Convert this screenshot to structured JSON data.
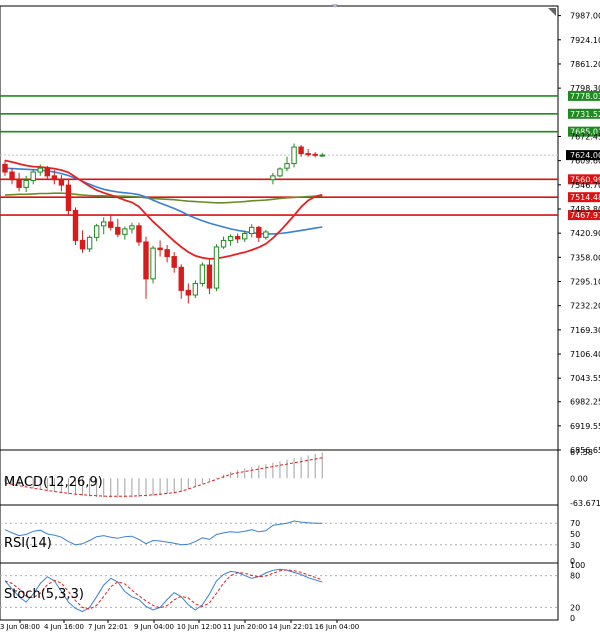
{
  "chart_data": {
    "type": "candlestick",
    "main": {
      "ylim": [
        6856.65,
        8012
      ],
      "price_ticks": [
        "7987.00",
        "7924.10",
        "7861.20",
        "7798.30",
        "7672.45",
        "7609.60",
        "7546.70",
        "7483.80",
        "7420.90",
        "7358.00",
        "7295.10",
        "7232.20",
        "7169.30",
        "7106.40",
        "7043.55",
        "6982.25",
        "6919.55",
        "6856.65"
      ],
      "levels": [
        {
          "label": "7778.03",
          "value": 7778.03,
          "kind": "resistance",
          "color": "#1f8a1f"
        },
        {
          "label": "7731.52",
          "value": 7731.52,
          "kind": "resistance",
          "color": "#1f8a1f"
        },
        {
          "label": "7685.01",
          "value": 7685.01,
          "kind": "resistance",
          "color": "#1f8a1f"
        },
        {
          "label": "7560.99",
          "value": 7560.99,
          "kind": "support",
          "color": "#dd1111"
        },
        {
          "label": "7514.48",
          "value": 7514.48,
          "kind": "support",
          "color": "#dd1111"
        },
        {
          "label": "7467.97",
          "value": 7467.97,
          "kind": "support",
          "color": "#dd1111"
        }
      ],
      "current_price": {
        "label": "7624.00",
        "value": 7624.0
      },
      "candles": [
        [
          7600,
          7612,
          7570,
          7580
        ],
        [
          7580,
          7590,
          7548,
          7560
        ],
        [
          7560,
          7578,
          7530,
          7540
        ],
        [
          7540,
          7570,
          7528,
          7558
        ],
        [
          7558,
          7588,
          7548,
          7580
        ],
        [
          7580,
          7600,
          7570,
          7590
        ],
        [
          7590,
          7596,
          7560,
          7570
        ],
        [
          7570,
          7585,
          7548,
          7560
        ],
        [
          7560,
          7572,
          7530,
          7546
        ],
        [
          7546,
          7560,
          7468,
          7480
        ],
        [
          7480,
          7488,
          7390,
          7402
        ],
        [
          7402,
          7428,
          7370,
          7380
        ],
        [
          7380,
          7415,
          7372,
          7410
        ],
        [
          7410,
          7445,
          7400,
          7440
        ],
        [
          7440,
          7462,
          7418,
          7450
        ],
        [
          7450,
          7470,
          7428,
          7436
        ],
        [
          7436,
          7458,
          7410,
          7418
        ],
        [
          7418,
          7438,
          7404,
          7432
        ],
        [
          7432,
          7448,
          7420,
          7440
        ],
        [
          7440,
          7448,
          7388,
          7398
        ],
        [
          7398,
          7412,
          7250,
          7302
        ],
        [
          7302,
          7388,
          7290,
          7382
        ],
        [
          7382,
          7402,
          7360,
          7378
        ],
        [
          7378,
          7390,
          7345,
          7360
        ],
        [
          7360,
          7372,
          7318,
          7332
        ],
        [
          7332,
          7340,
          7250,
          7272
        ],
        [
          7272,
          7290,
          7238,
          7260
        ],
        [
          7260,
          7298,
          7252,
          7290
        ],
        [
          7290,
          7345,
          7282,
          7338
        ],
        [
          7338,
          7352,
          7262,
          7278
        ],
        [
          7278,
          7392,
          7270,
          7385
        ],
        [
          7385,
          7412,
          7380,
          7402
        ],
        [
          7402,
          7418,
          7388,
          7412
        ],
        [
          7412,
          7420,
          7395,
          7406
        ],
        [
          7406,
          7428,
          7398,
          7420
        ],
        [
          7420,
          7444,
          7410,
          7436
        ],
        [
          7436,
          7440,
          7398,
          7410
        ],
        [
          7410,
          7430,
          7404,
          7424
        ],
        [
          7560,
          7578,
          7548,
          7570
        ],
        [
          7570,
          7592,
          7566,
          7588
        ],
        [
          7590,
          7620,
          7582,
          7602
        ],
        [
          7602,
          7654,
          7592,
          7645
        ],
        [
          7645,
          7650,
          7620,
          7628
        ],
        [
          7628,
          7640,
          7620,
          7626
        ],
        [
          7626,
          7632,
          7618,
          7624
        ],
        [
          7624,
          7630,
          7620,
          7624
        ]
      ],
      "ma_green": [
        7520,
        7521,
        7522,
        7522,
        7523,
        7524,
        7524,
        7525,
        7525,
        7524,
        7522,
        7520,
        7519,
        7518,
        7518,
        7517,
        7517,
        7517,
        7516,
        7515,
        7513,
        7511,
        7510,
        7509,
        7508,
        7506,
        7504,
        7503,
        7502,
        7501,
        7500,
        7500,
        7501,
        7502,
        7503,
        7505,
        7506,
        7507,
        7509,
        7511,
        7513,
        7514,
        7515,
        7516,
        7517,
        7518
      ],
      "ma_blue": [
        7590,
        7589,
        7588,
        7587,
        7586,
        7585,
        7583,
        7580,
        7576,
        7571,
        7564,
        7556,
        7548,
        7541,
        7535,
        7531,
        7528,
        7526,
        7524,
        7521,
        7515,
        7507,
        7499,
        7492,
        7485,
        7477,
        7468,
        7460,
        7453,
        7447,
        7442,
        7437,
        7432,
        7428,
        7425,
        7422,
        7420,
        7419,
        7419,
        7420,
        7422,
        7425,
        7428,
        7431,
        7434,
        7437
      ],
      "ma_red": [
        7610,
        7606,
        7601,
        7597,
        7594,
        7593,
        7591,
        7589,
        7585,
        7579,
        7567,
        7555,
        7543,
        7533,
        7526,
        7520,
        7514,
        7507,
        7501,
        7490,
        7470,
        7451,
        7434,
        7417,
        7400,
        7385,
        7372,
        7362,
        7357,
        7354,
        7355,
        7358,
        7362,
        7367,
        7371,
        7377,
        7384,
        7393,
        7408,
        7426,
        7446,
        7467,
        7489,
        7506,
        7516,
        7521
      ]
    },
    "macd": {
      "label": "MACD(12,26,9)",
      "ticks": [
        "67.58",
        "0.00",
        "-63.671"
      ],
      "ylim": [
        -63.671,
        67.58
      ]
    },
    "rsi": {
      "label": "RSI(14)",
      "ticks": [
        "70",
        "50",
        "30",
        "0"
      ],
      "ylim": [
        0,
        100
      ]
    },
    "stoch": {
      "label": "Stoch(5,3,3)",
      "ticks": [
        "100",
        "80",
        "20",
        "0"
      ],
      "ylim": [
        0,
        100
      ]
    },
    "x_ticks": [
      "3 Jun 08:00",
      "4 Jun 16:00",
      "7 Jun 22:01",
      "9 Jun 04:00",
      "10 Jun 12:00",
      "11 Jun 20:00",
      "14 Jun 22:01",
      "16 Jun 04:00"
    ],
    "colors": {
      "up": "#1e8c1e",
      "down": "#d81b1b",
      "ma_red": "#e62020",
      "ma_blue": "#3a7fd6",
      "ma_green": "#6c8a2a",
      "axis": "#000000"
    }
  }
}
